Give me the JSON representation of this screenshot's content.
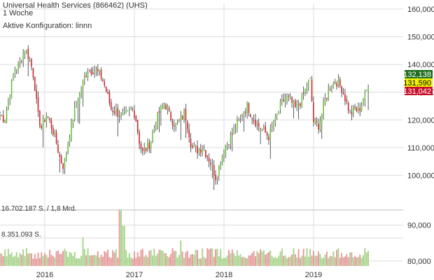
{
  "header": {
    "title": "Universal Health Services (866462) (UHS)",
    "interval": "1 Woche",
    "config": "Aktive Konfiguration: linnn"
  },
  "colors": {
    "up": "#6ac043",
    "down": "#d0252c",
    "wick": "#333333",
    "grid": "#dcdcdc",
    "vol_up": "#a8d48c",
    "vol_down": "#e59a9a",
    "badge_high": "#1f6e1f",
    "badge_mid": "#f2f200",
    "badge_low": "#c8102e"
  },
  "badges": {
    "high": "132,138",
    "mid": "131,590",
    "low": "131,042"
  },
  "volume": {
    "label_top": "16.702.187 S. / 1,8 Mrd.",
    "label_mid": "8.351.093 S."
  },
  "chart_data": [
    {
      "type": "candlestick",
      "title": "Universal Health Services (866462) (UHS)",
      "interval": "1 Woche",
      "ylim": [
        90,
        162
      ],
      "yticks": [
        "160,000",
        "150,000",
        "140,000",
        "130,000",
        "120,000",
        "110,000",
        "100,000",
        "90,000"
      ],
      "ytick_values": [
        160,
        150,
        140,
        130,
        120,
        110,
        100,
        90
      ],
      "xticks": [
        "2016",
        "2017",
        "2018",
        "2019"
      ],
      "xtick_values": [
        0.5,
        1.5,
        2.5,
        3.5
      ],
      "xlim": [
        0,
        4.5
      ],
      "grid": true,
      "anchors": [
        [
          0.0,
          122
        ],
        [
          0.05,
          120
        ],
        [
          0.1,
          128
        ],
        [
          0.16,
          138
        ],
        [
          0.22,
          140
        ],
        [
          0.28,
          146
        ],
        [
          0.34,
          141
        ],
        [
          0.38,
          135
        ],
        [
          0.42,
          122
        ],
        [
          0.46,
          117
        ],
        [
          0.52,
          122
        ],
        [
          0.57,
          118
        ],
        [
          0.62,
          113
        ],
        [
          0.67,
          106
        ],
        [
          0.71,
          103
        ],
        [
          0.76,
          112
        ],
        [
          0.82,
          122
        ],
        [
          0.88,
          128
        ],
        [
          0.93,
          134
        ],
        [
          0.98,
          138
        ],
        [
          1.04,
          138
        ],
        [
          1.1,
          137
        ],
        [
          1.14,
          135
        ],
        [
          1.18,
          131
        ],
        [
          1.24,
          124
        ],
        [
          1.3,
          123
        ],
        [
          1.36,
          121
        ],
        [
          1.42,
          122
        ],
        [
          1.47,
          124
        ],
        [
          1.51,
          122
        ],
        [
          1.55,
          113
        ],
        [
          1.59,
          108
        ],
        [
          1.64,
          110
        ],
        [
          1.68,
          112
        ],
        [
          1.72,
          117
        ],
        [
          1.78,
          123
        ],
        [
          1.84,
          126
        ],
        [
          1.9,
          121
        ],
        [
          1.96,
          118
        ],
        [
          2.02,
          120
        ],
        [
          2.06,
          123
        ],
        [
          2.1,
          117
        ],
        [
          2.14,
          110
        ],
        [
          2.2,
          109
        ],
        [
          2.26,
          110
        ],
        [
          2.3,
          108
        ],
        [
          2.36,
          104
        ],
        [
          2.41,
          99
        ],
        [
          2.46,
          105
        ],
        [
          2.52,
          111
        ],
        [
          2.58,
          114
        ],
        [
          2.64,
          118
        ],
        [
          2.7,
          122
        ],
        [
          2.76,
          125
        ],
        [
          2.82,
          121
        ],
        [
          2.88,
          118
        ],
        [
          2.94,
          116
        ],
        [
          3.0,
          114
        ],
        [
          3.06,
          119
        ],
        [
          3.12,
          124
        ],
        [
          3.18,
          128
        ],
        [
          3.24,
          127
        ],
        [
          3.3,
          124
        ],
        [
          3.36,
          127
        ],
        [
          3.41,
          131
        ],
        [
          3.46,
          135
        ],
        [
          3.5,
          119
        ],
        [
          3.56,
          118
        ],
        [
          3.62,
          126
        ],
        [
          3.68,
          132
        ],
        [
          3.74,
          134
        ],
        [
          3.78,
          133
        ],
        [
          3.82,
          131
        ],
        [
          3.86,
          127
        ],
        [
          3.91,
          122
        ],
        [
          3.96,
          124
        ],
        [
          4.0,
          123
        ],
        [
          4.04,
          126
        ],
        [
          4.08,
          130
        ],
        [
          4.11,
          131.6
        ]
      ],
      "volume_ylim": [
        0,
        16.7
      ],
      "volume_yticks": [
        "90,000",
        "80,000"
      ],
      "volume_ytick_values": [
        12.2,
        1.5
      ],
      "volume_spikes": [
        [
          0.93,
          8.5
        ],
        [
          1.34,
          16.7
        ],
        [
          1.38,
          12.0
        ],
        [
          2.02,
          7.6
        ]
      ]
    }
  ]
}
